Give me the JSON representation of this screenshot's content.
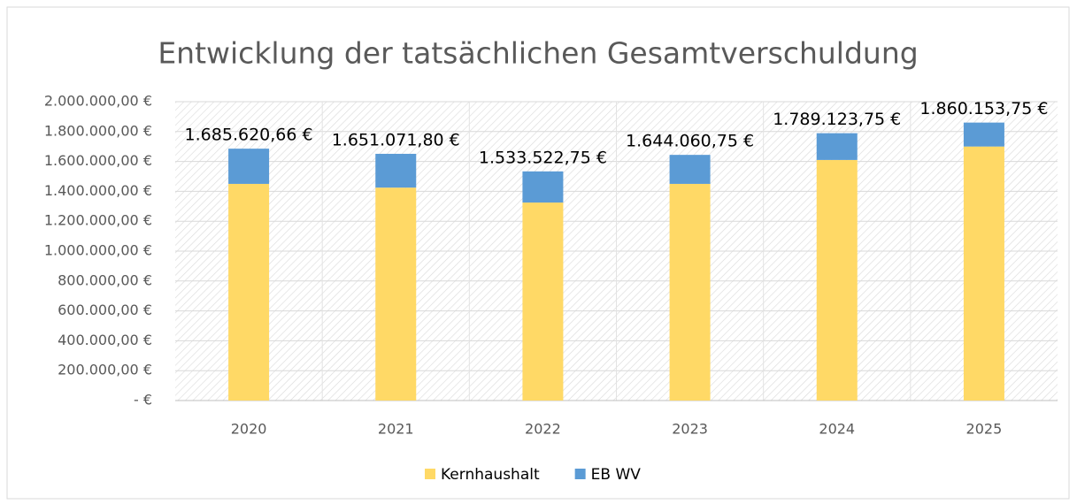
{
  "chart_data": {
    "type": "stacked_bar",
    "title": "Entwicklung der tatsächlichen Gesamtverschuldung",
    "categories": [
      "2020",
      "2021",
      "2022",
      "2023",
      "2024",
      "2025"
    ],
    "series": [
      {
        "name": "Kernhaushalt",
        "color": "#FFD966",
        "values": [
          1450000,
          1425000,
          1325000,
          1450000,
          1610000,
          1700000
        ]
      },
      {
        "name": "EB WV",
        "color": "#5B9BD5",
        "values": [
          235620.66,
          226071.8,
          208522.75,
          194060.75,
          179123.75,
          160153.75
        ]
      }
    ],
    "totals": [
      1685620.66,
      1651071.8,
      1533522.75,
      1644060.75,
      1789123.75,
      1860153.75
    ],
    "total_labels": [
      "1.685.620,66 €",
      "1.651.071,80 €",
      "1.533.522,75 €",
      "1.644.060,75 €",
      "1.789.123,75 €",
      "1.860.153,75 €"
    ],
    "ylim": [
      0,
      2000000
    ],
    "yticks": [
      {
        "value": 0,
        "label": "-  €"
      },
      {
        "value": 200000,
        "label": "200.000,00 €"
      },
      {
        "value": 400000,
        "label": "400.000,00 €"
      },
      {
        "value": 600000,
        "label": "600.000,00 €"
      },
      {
        "value": 800000,
        "label": "800.000,00 €"
      },
      {
        "value": 1000000,
        "label": "1.000.000,00 €"
      },
      {
        "value": 1200000,
        "label": "1.200.000,00 €"
      },
      {
        "value": 1400000,
        "label": "1.400.000,00 €"
      },
      {
        "value": 1600000,
        "label": "1.600.000,00 €"
      },
      {
        "value": 1800000,
        "label": "1.800.000,00 €"
      },
      {
        "value": 2000000,
        "label": "2.000.000,00 €"
      }
    ],
    "grid": true,
    "legend": "bottom"
  }
}
